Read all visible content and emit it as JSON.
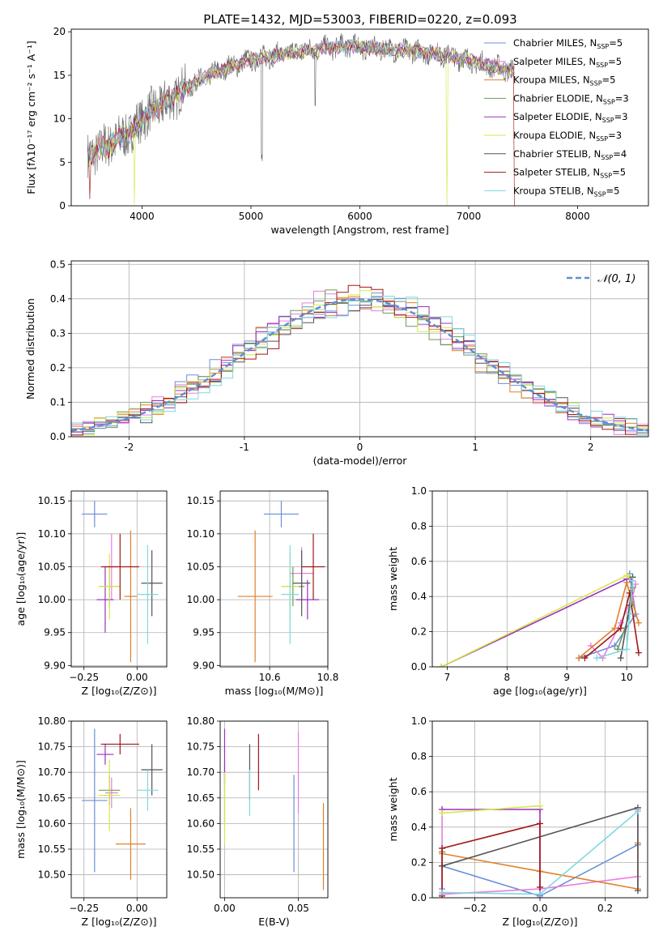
{
  "figure_title": "PLATE=1432, MJD=53003, FIBERID=0220, z=0.093",
  "models": [
    {
      "name": "Chabrier MILES",
      "nssp": "5",
      "color": "#6a8fd8"
    },
    {
      "name": "Salpeter MILES",
      "nssp": "5",
      "color": "#e97de0"
    },
    {
      "name": "Kroupa MILES",
      "nssp": "5",
      "color": "#e0812a"
    },
    {
      "name": "Chabrier ELODIE",
      "nssp": "3",
      "color": "#6e9a58"
    },
    {
      "name": "Salpeter ELODIE",
      "nssp": "3",
      "color": "#9b30c0"
    },
    {
      "name": "Kroupa ELODIE",
      "nssp": "3",
      "color": "#d4e84a"
    },
    {
      "name": "Chabrier STELIB",
      "nssp": "4",
      "color": "#555555"
    },
    {
      "name": "Salpeter STELIB",
      "nssp": "5",
      "color": "#a01818"
    },
    {
      "name": "Kroupa STELIB",
      "nssp": "5",
      "color": "#7fd8e0"
    }
  ],
  "chart_data": [
    {
      "id": "spectrum",
      "type": "line",
      "xlabel": "wavelength [Angstrom, rest frame]",
      "ylabel": "Flux [fλ10⁻¹⁷ erg cm⁻² s⁻¹ A⁻¹]",
      "xlim": [
        3350,
        8650
      ],
      "ylim": [
        0,
        20.3
      ],
      "xticks": [
        4000,
        5000,
        6000,
        7000,
        8000
      ],
      "yticks": [
        0,
        5,
        10,
        15,
        20
      ],
      "grid": false,
      "legend": "right",
      "continuum": {
        "x": [
          3500,
          3600,
          3700,
          3800,
          3900,
          4000,
          4100,
          4200,
          4300,
          4400,
          4500,
          4700,
          5000,
          5300,
          5600,
          5900,
          6200,
          6500,
          6800,
          7100,
          7400
        ],
        "y": [
          5.5,
          6.5,
          7.0,
          7.8,
          8.5,
          10.0,
          11.0,
          11.8,
          12.5,
          13.5,
          14.2,
          15.5,
          16.8,
          17.4,
          18.0,
          18.4,
          18.0,
          17.8,
          17.3,
          16.4,
          15.5
        ]
      },
      "dips": [
        {
          "x": 3520,
          "depth": 5.5,
          "model": 7
        },
        {
          "x": 3930,
          "depth": 8.5,
          "model": 5
        },
        {
          "x": 5100,
          "depth": 12.0,
          "model": 6
        },
        {
          "x": 5590,
          "depth": 6.0,
          "model": 6
        },
        {
          "x": 6800,
          "depth": 17.8,
          "model": 5
        },
        {
          "x": 7420,
          "depth": 15.5,
          "model": 7
        }
      ]
    },
    {
      "id": "residuals",
      "type": "step",
      "xlabel": "(data-model)/error",
      "ylabel": "Normed distribution",
      "xlim": [
        -2.5,
        2.5
      ],
      "ylim": [
        0,
        0.51
      ],
      "xticks": [
        -2,
        -1,
        0,
        1,
        2
      ],
      "yticks": [
        0.0,
        0.1,
        0.2,
        0.3,
        0.4,
        0.5
      ],
      "grid": true,
      "legend": "top-right",
      "gaussian": {
        "label": "𝒩(0, 1)",
        "mean": 0,
        "sigma": 1,
        "color": "#5b8fd4"
      },
      "bin_width": 0.1
    },
    {
      "id": "age_vs_Z",
      "type": "errorbar",
      "xlabel": "Z [log₁₀(Z/Z⊙)]",
      "ylabel": "age  [log₁₀(age/yr)]",
      "xlim": [
        -0.31,
        0.14
      ],
      "ylim": [
        9.898,
        10.165
      ],
      "xticks": [
        -0.25,
        0.0
      ],
      "xticklabels": [
        "−0.25",
        "0.00"
      ],
      "yticks": [
        9.9,
        9.95,
        10.0,
        10.05,
        10.1,
        10.15
      ],
      "grid": true,
      "points": [
        {
          "x": -0.2,
          "y": 10.13,
          "xerr": 0.06,
          "yerr": 0.02,
          "model": 0
        },
        {
          "x": -0.12,
          "y": 10.05,
          "xerr": 0.03,
          "yerr": 0.05,
          "model": 1
        },
        {
          "x": -0.03,
          "y": 10.005,
          "xerr": 0.03,
          "yerr": 0.1,
          "model": 2
        },
        {
          "x": -0.13,
          "y": 10.02,
          "xerr": 0.05,
          "yerr": 0.03,
          "model": 3
        },
        {
          "x": -0.15,
          "y": 10.0,
          "xerr": 0.04,
          "yerr": 0.05,
          "model": 4
        },
        {
          "x": -0.13,
          "y": 10.02,
          "xerr": 0.05,
          "yerr": 0.05,
          "model": 5
        },
        {
          "x": 0.07,
          "y": 10.025,
          "xerr": 0.05,
          "yerr": 0.05,
          "model": 6
        },
        {
          "x": -0.08,
          "y": 10.05,
          "xerr": 0.09,
          "yerr": 0.05,
          "model": 7
        },
        {
          "x": 0.05,
          "y": 10.008,
          "xerr": 0.05,
          "yerr": 0.075,
          "model": 8
        }
      ]
    },
    {
      "id": "age_vs_mass",
      "type": "errorbar",
      "xlabel": "mass [log₁₀(M/M⊙)]",
      "ylabel": "",
      "xlim": [
        10.43,
        10.8
      ],
      "ylim": [
        9.898,
        10.165
      ],
      "xticks": [
        10.6,
        10.8
      ],
      "xticklabels": [
        "10.6",
        "10.8"
      ],
      "yticks": [
        9.9,
        9.95,
        10.0,
        10.05,
        10.1,
        10.15
      ],
      "grid": true,
      "points": [
        {
          "x": 10.64,
          "y": 10.13,
          "xerr": 0.06,
          "yerr": 0.02,
          "model": 0
        },
        {
          "x": 10.71,
          "y": 10.04,
          "xerr": 0.04,
          "yerr": 0.04,
          "model": 1
        },
        {
          "x": 10.55,
          "y": 10.005,
          "xerr": 0.06,
          "yerr": 0.1,
          "model": 2
        },
        {
          "x": 10.68,
          "y": 10.02,
          "xerr": 0.04,
          "yerr": 0.03,
          "model": 3
        },
        {
          "x": 10.73,
          "y": 10.0,
          "xerr": 0.04,
          "yerr": 0.03,
          "model": 4
        },
        {
          "x": 10.67,
          "y": 10.02,
          "xerr": 0.03,
          "yerr": 0.05,
          "model": 5
        },
        {
          "x": 10.71,
          "y": 10.025,
          "xerr": 0.03,
          "yerr": 0.05,
          "model": 6
        },
        {
          "x": 10.75,
          "y": 10.05,
          "xerr": 0.04,
          "yerr": 0.05,
          "model": 7
        },
        {
          "x": 10.67,
          "y": 10.008,
          "xerr": 0.03,
          "yerr": 0.075,
          "model": 8
        }
      ]
    },
    {
      "id": "mass_vs_Z",
      "type": "errorbar",
      "xlabel": "Z [log₁₀(Z/Z⊙)]",
      "ylabel": "mass [log₁₀(M/M⊙)]",
      "xlim": [
        -0.31,
        0.14
      ],
      "ylim": [
        10.455,
        10.8
      ],
      "xticks": [
        -0.25,
        0.0
      ],
      "xticklabels": [
        "−0.25",
        "0.00"
      ],
      "yticks": [
        10.5,
        10.55,
        10.6,
        10.65,
        10.7,
        10.75,
        10.8
      ],
      "grid": true,
      "points": [
        {
          "x": -0.2,
          "y": 10.645,
          "xerr": 0.06,
          "yerr": 0.14,
          "model": 0
        },
        {
          "x": -0.12,
          "y": 10.66,
          "xerr": 0.03,
          "yerr": 0.03,
          "model": 1
        },
        {
          "x": -0.03,
          "y": 10.56,
          "xerr": 0.07,
          "yerr": 0.07,
          "model": 2
        },
        {
          "x": -0.13,
          "y": 10.665,
          "xerr": 0.05,
          "yerr": 0.03,
          "model": 3
        },
        {
          "x": -0.15,
          "y": 10.735,
          "xerr": 0.04,
          "yerr": 0.02,
          "model": 4
        },
        {
          "x": -0.13,
          "y": 10.655,
          "xerr": 0.05,
          "yerr": 0.07,
          "model": 5
        },
        {
          "x": 0.07,
          "y": 10.705,
          "xerr": 0.05,
          "yerr": 0.05,
          "model": 6
        },
        {
          "x": -0.08,
          "y": 10.755,
          "xerr": 0.09,
          "yerr": 0.02,
          "model": 7
        },
        {
          "x": 0.05,
          "y": 10.665,
          "xerr": 0.05,
          "yerr": 0.04,
          "model": 8
        }
      ]
    },
    {
      "id": "mass_vs_EBV",
      "type": "errorbar",
      "xlabel": "E(B-V)",
      "ylabel": "",
      "xlim": [
        -0.003,
        0.07
      ],
      "ylim": [
        10.455,
        10.8
      ],
      "xticks": [
        0.0,
        0.05
      ],
      "xticklabels": [
        "0.00",
        "0.05"
      ],
      "yticks": [
        10.5,
        10.55,
        10.6,
        10.65,
        10.7,
        10.75,
        10.8
      ],
      "grid": true,
      "points": [
        {
          "x": 0.047,
          "y": 10.6,
          "xerr": 0,
          "yerr": 0.095,
          "model": 0
        },
        {
          "x": 0.05,
          "y": 10.7,
          "xerr": 0,
          "yerr": 0.08,
          "model": 1
        },
        {
          "x": 0.067,
          "y": 10.555,
          "xerr": 0,
          "yerr": 0.085,
          "model": 2
        },
        {
          "x": 0.0,
          "y": 10.66,
          "xerr": 0,
          "yerr": 0.06,
          "model": 3
        },
        {
          "x": 0.0,
          "y": 10.73,
          "xerr": 0,
          "yerr": 0.055,
          "model": 4
        },
        {
          "x": 0.0,
          "y": 10.63,
          "xerr": 0,
          "yerr": 0.07,
          "model": 5
        },
        {
          "x": 0.017,
          "y": 10.7,
          "xerr": 0,
          "yerr": 0.055,
          "model": 6
        },
        {
          "x": 0.023,
          "y": 10.72,
          "xerr": 0,
          "yerr": 0.055,
          "model": 7
        },
        {
          "x": 0.017,
          "y": 10.66,
          "xerr": 0,
          "yerr": 0.045,
          "model": 8
        }
      ]
    },
    {
      "id": "weight_vs_age",
      "type": "line",
      "xlabel": "age  [log₁₀(age/yr)]",
      "ylabel": "mass weight",
      "xlim": [
        6.75,
        10.35
      ],
      "ylim": [
        0,
        1.0
      ],
      "xticks": [
        7,
        8,
        9,
        10
      ],
      "yticks": [
        0.0,
        0.2,
        0.4,
        0.6,
        0.8,
        1.0
      ],
      "grid": true,
      "series": [
        {
          "model": 0,
          "x": [
            9.2,
            9.8,
            10.15,
            10.05
          ],
          "y": [
            0.05,
            0.12,
            0.3,
            0.53
          ]
        },
        {
          "model": 1,
          "x": [
            9.4,
            9.6,
            9.9,
            10.1,
            10.15
          ],
          "y": [
            0.12,
            0.05,
            0.25,
            0.4,
            0.47
          ]
        },
        {
          "model": 2,
          "x": [
            9.2,
            9.8,
            10.0,
            10.2
          ],
          "y": [
            0.05,
            0.22,
            0.48,
            0.25
          ]
        },
        {
          "model": 3,
          "x": [
            9.85,
            10.05,
            10.1
          ],
          "y": [
            0.1,
            0.3,
            0.45
          ]
        },
        {
          "model": 4,
          "x": [
            6.9,
            10.0,
            10.05
          ],
          "y": [
            0.0,
            0.5,
            0.5
          ]
        },
        {
          "model": 5,
          "x": [
            6.9,
            10.0,
            10.05
          ],
          "y": [
            0.0,
            0.52,
            0.51
          ]
        },
        {
          "model": 6,
          "x": [
            9.9,
            10.05,
            10.1
          ],
          "y": [
            0.05,
            0.35,
            0.51
          ]
        },
        {
          "model": 7,
          "x": [
            9.3,
            9.9,
            10.05,
            10.2
          ],
          "y": [
            0.05,
            0.22,
            0.42,
            0.08
          ]
        },
        {
          "model": 8,
          "x": [
            9.5,
            10.0,
            10.05,
            10.1
          ],
          "y": [
            0.05,
            0.1,
            0.3,
            0.49
          ]
        }
      ]
    },
    {
      "id": "weight_vs_Z",
      "type": "line",
      "xlabel": "Z [log₁₀(Z/Z⊙)]",
      "ylabel": "mass weight",
      "xlim": [
        -0.33,
        0.33
      ],
      "ylim": [
        0,
        1.0
      ],
      "xticks": [
        -0.2,
        0.0,
        0.2
      ],
      "xticklabels": [
        "−0.2",
        "0.0",
        "0.2"
      ],
      "yticks": [
        0.0,
        0.2,
        0.4,
        0.6,
        0.8,
        1.0
      ],
      "grid": true,
      "series": [
        {
          "model": 0,
          "x": [
            -0.3,
            -0.3,
            0.0,
            0.3
          ],
          "y": [
            0.05,
            0.18,
            0.01,
            0.3
          ]
        },
        {
          "model": 1,
          "x": [
            -0.3,
            -0.3,
            0.0,
            0.3,
            0.3
          ],
          "y": [
            0.5,
            0.02,
            0.05,
            0.12,
            0.5
          ]
        },
        {
          "model": 2,
          "x": [
            -0.3,
            0.0,
            0.3,
            0.3
          ],
          "y": [
            0.25,
            0.15,
            0.05,
            0.31
          ]
        },
        {
          "model": 3,
          "x": [
            -0.3,
            -0.3
          ],
          "y": [
            0.26,
            0.18
          ]
        },
        {
          "model": 4,
          "x": [
            -0.3,
            0.0,
            0.0
          ],
          "y": [
            0.5,
            0.5,
            0.0
          ]
        },
        {
          "model": 5,
          "x": [
            -0.3,
            0.0
          ],
          "y": [
            0.48,
            0.52
          ]
        },
        {
          "model": 6,
          "x": [
            -0.3,
            0.3,
            0.3
          ],
          "y": [
            0.18,
            0.51,
            0.04
          ]
        },
        {
          "model": 7,
          "x": [
            -0.3,
            -0.3,
            0.0,
            0.0
          ],
          "y": [
            0.01,
            0.28,
            0.42,
            0.06
          ]
        },
        {
          "model": 8,
          "x": [
            -0.3,
            0.0,
            0.3
          ],
          "y": [
            0.03,
            0.02,
            0.49
          ]
        }
      ]
    }
  ]
}
